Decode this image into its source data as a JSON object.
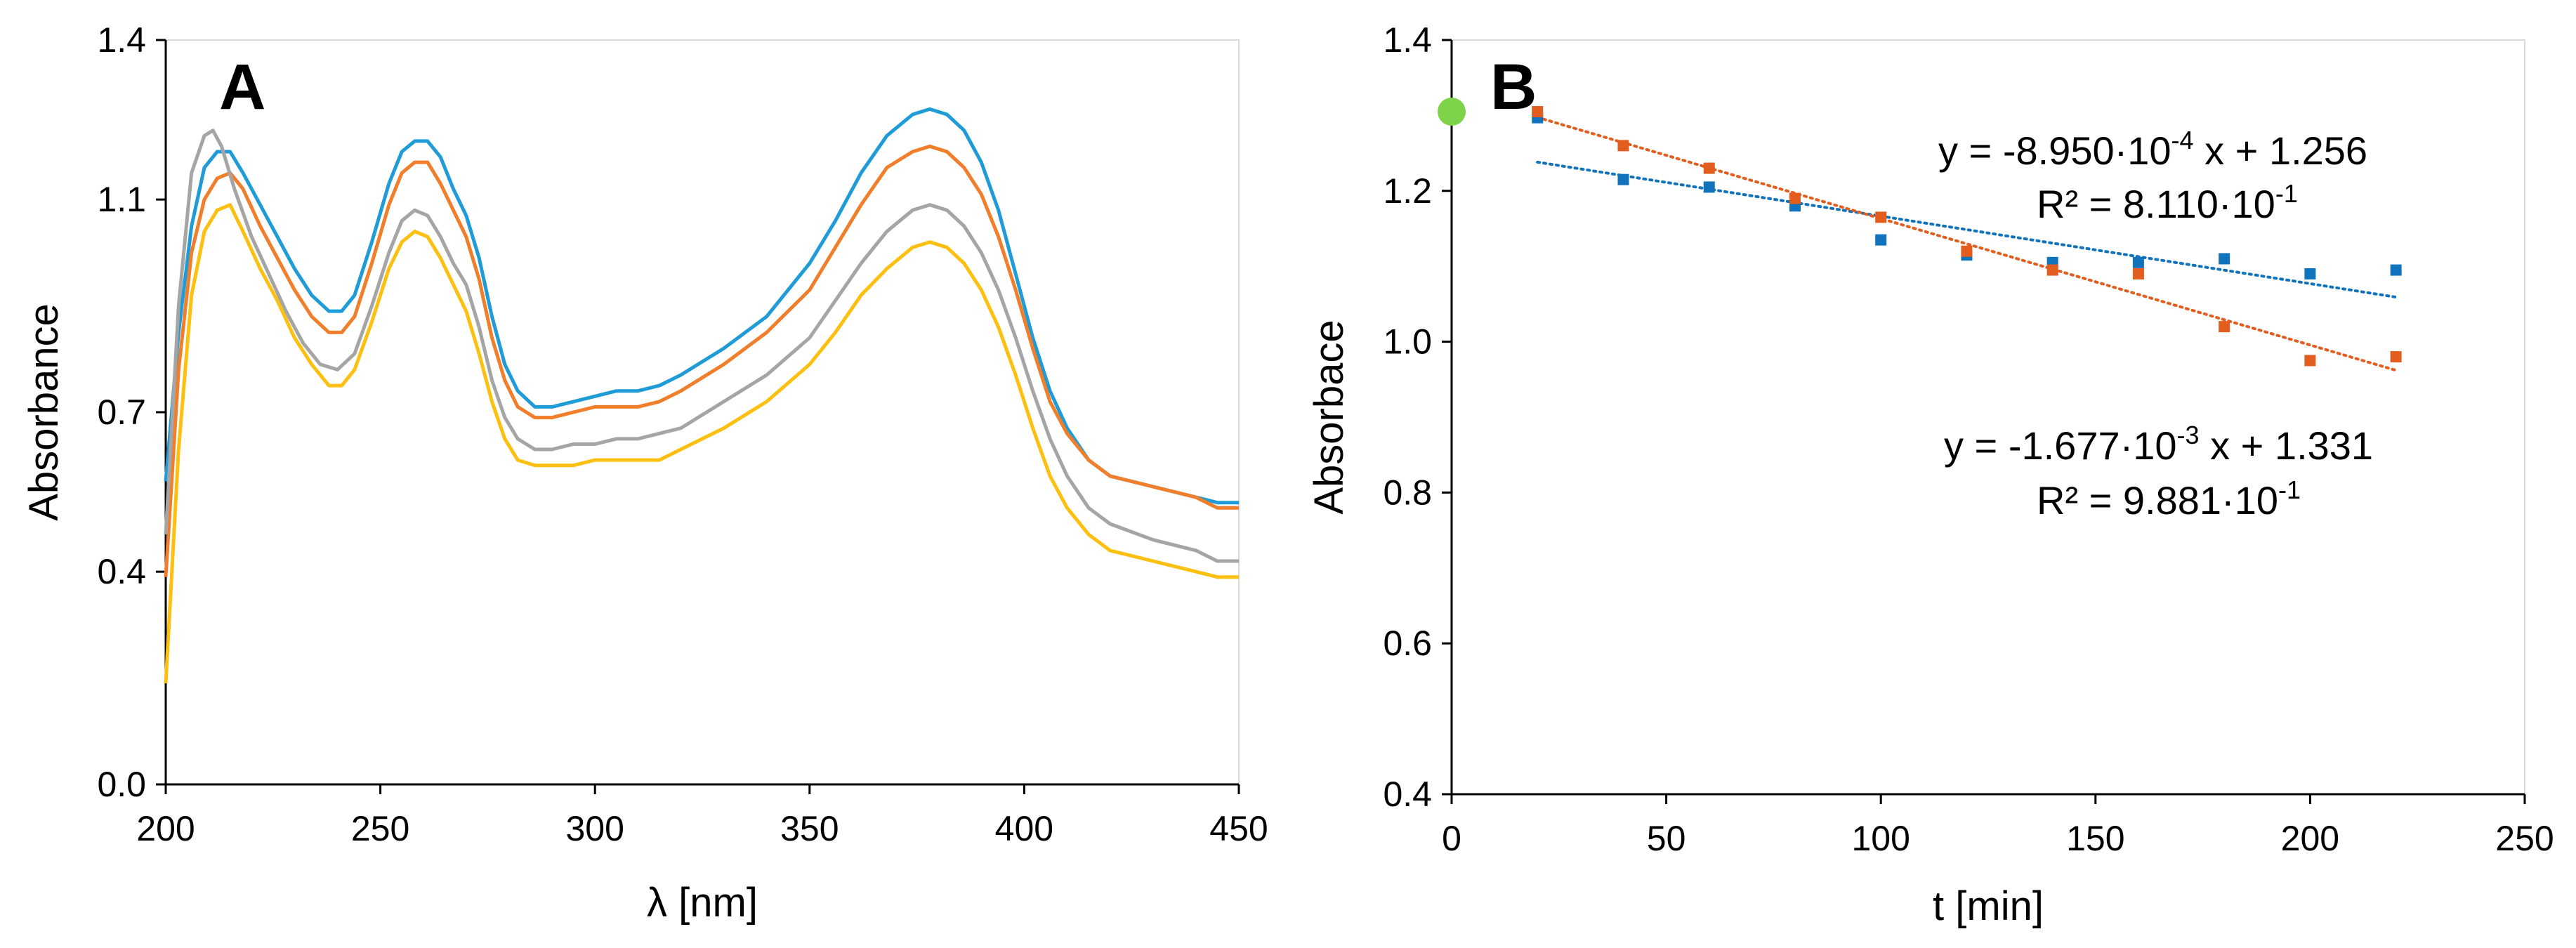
{
  "chart_data": [
    {
      "panel": "A",
      "type": "line",
      "xlabel": "λ [nm]",
      "ylabel": "Absorbance",
      "xlim": [
        200,
        450
      ],
      "ylim": [
        0.0,
        1.4
      ],
      "xticks": [
        "200",
        "250",
        "300",
        "350",
        "400",
        "450"
      ],
      "yticks": [
        "0.0",
        "0.4",
        "0.7",
        "1.1",
        "1.4"
      ],
      "grid": false,
      "series": [
        {
          "name": "series-1",
          "color": "#1f9bd7",
          "points": [
            [
              200,
              0.57
            ],
            [
              203,
              0.85
            ],
            [
              206,
              1.05
            ],
            [
              209,
              1.16
            ],
            [
              212,
              1.19
            ],
            [
              215,
              1.19
            ],
            [
              218,
              1.15
            ],
            [
              222,
              1.09
            ],
            [
              226,
              1.03
            ],
            [
              230,
              0.97
            ],
            [
              234,
              0.92
            ],
            [
              238,
              0.89
            ],
            [
              241,
              0.89
            ],
            [
              244,
              0.92
            ],
            [
              248,
              1.02
            ],
            [
              252,
              1.13
            ],
            [
              255,
              1.19
            ],
            [
              258,
              1.21
            ],
            [
              261,
              1.21
            ],
            [
              264,
              1.18
            ],
            [
              267,
              1.12
            ],
            [
              270,
              1.07
            ],
            [
              273,
              0.99
            ],
            [
              276,
              0.88
            ],
            [
              279,
              0.79
            ],
            [
              282,
              0.74
            ],
            [
              286,
              0.71
            ],
            [
              290,
              0.71
            ],
            [
              295,
              0.72
            ],
            [
              300,
              0.73
            ],
            [
              305,
              0.74
            ],
            [
              310,
              0.74
            ],
            [
              315,
              0.75
            ],
            [
              320,
              0.77
            ],
            [
              330,
              0.82
            ],
            [
              340,
              0.88
            ],
            [
              350,
              0.98
            ],
            [
              356,
              1.06
            ],
            [
              362,
              1.15
            ],
            [
              368,
              1.22
            ],
            [
              374,
              1.26
            ],
            [
              378,
              1.27
            ],
            [
              382,
              1.26
            ],
            [
              386,
              1.23
            ],
            [
              390,
              1.17
            ],
            [
              394,
              1.08
            ],
            [
              398,
              0.96
            ],
            [
              402,
              0.84
            ],
            [
              406,
              0.74
            ],
            [
              410,
              0.67
            ],
            [
              415,
              0.61
            ],
            [
              420,
              0.58
            ],
            [
              430,
              0.56
            ],
            [
              440,
              0.54
            ],
            [
              445,
              0.53
            ],
            [
              450,
              0.53
            ]
          ]
        },
        {
          "name": "series-2",
          "color": "#f07e2a",
          "points": [
            [
              200,
              0.39
            ],
            [
              203,
              0.78
            ],
            [
              206,
              1.0
            ],
            [
              209,
              1.1
            ],
            [
              212,
              1.14
            ],
            [
              215,
              1.15
            ],
            [
              218,
              1.12
            ],
            [
              222,
              1.05
            ],
            [
              226,
              0.99
            ],
            [
              230,
              0.93
            ],
            [
              234,
              0.88
            ],
            [
              238,
              0.85
            ],
            [
              241,
              0.85
            ],
            [
              244,
              0.88
            ],
            [
              248,
              0.98
            ],
            [
              252,
              1.09
            ],
            [
              255,
              1.15
            ],
            [
              258,
              1.17
            ],
            [
              261,
              1.17
            ],
            [
              264,
              1.13
            ],
            [
              267,
              1.08
            ],
            [
              270,
              1.03
            ],
            [
              273,
              0.95
            ],
            [
              276,
              0.84
            ],
            [
              279,
              0.76
            ],
            [
              282,
              0.71
            ],
            [
              286,
              0.69
            ],
            [
              290,
              0.69
            ],
            [
              295,
              0.7
            ],
            [
              300,
              0.71
            ],
            [
              305,
              0.71
            ],
            [
              310,
              0.71
            ],
            [
              315,
              0.72
            ],
            [
              320,
              0.74
            ],
            [
              330,
              0.79
            ],
            [
              340,
              0.85
            ],
            [
              350,
              0.93
            ],
            [
              356,
              1.01
            ],
            [
              362,
              1.09
            ],
            [
              368,
              1.16
            ],
            [
              374,
              1.19
            ],
            [
              378,
              1.2
            ],
            [
              382,
              1.19
            ],
            [
              386,
              1.16
            ],
            [
              390,
              1.11
            ],
            [
              394,
              1.03
            ],
            [
              398,
              0.93
            ],
            [
              402,
              0.82
            ],
            [
              406,
              0.72
            ],
            [
              410,
              0.66
            ],
            [
              415,
              0.61
            ],
            [
              420,
              0.58
            ],
            [
              430,
              0.56
            ],
            [
              440,
              0.54
            ],
            [
              445,
              0.52
            ],
            [
              450,
              0.52
            ]
          ]
        },
        {
          "name": "series-3",
          "color": "#a5a5a5",
          "points": [
            [
              200,
              0.47
            ],
            [
              203,
              0.9
            ],
            [
              206,
              1.15
            ],
            [
              209,
              1.22
            ],
            [
              211,
              1.23
            ],
            [
              213,
              1.2
            ],
            [
              216,
              1.12
            ],
            [
              220,
              1.03
            ],
            [
              224,
              0.96
            ],
            [
              228,
              0.89
            ],
            [
              232,
              0.83
            ],
            [
              236,
              0.79
            ],
            [
              240,
              0.78
            ],
            [
              244,
              0.81
            ],
            [
              248,
              0.9
            ],
            [
              252,
              1.0
            ],
            [
              255,
              1.06
            ],
            [
              258,
              1.08
            ],
            [
              261,
              1.07
            ],
            [
              264,
              1.03
            ],
            [
              267,
              0.98
            ],
            [
              270,
              0.94
            ],
            [
              273,
              0.86
            ],
            [
              276,
              0.76
            ],
            [
              279,
              0.69
            ],
            [
              282,
              0.65
            ],
            [
              286,
              0.63
            ],
            [
              290,
              0.63
            ],
            [
              295,
              0.64
            ],
            [
              300,
              0.64
            ],
            [
              305,
              0.65
            ],
            [
              310,
              0.65
            ],
            [
              315,
              0.66
            ],
            [
              320,
              0.67
            ],
            [
              330,
              0.72
            ],
            [
              340,
              0.77
            ],
            [
              350,
              0.84
            ],
            [
              356,
              0.91
            ],
            [
              362,
              0.98
            ],
            [
              368,
              1.04
            ],
            [
              374,
              1.08
            ],
            [
              378,
              1.09
            ],
            [
              382,
              1.08
            ],
            [
              386,
              1.05
            ],
            [
              390,
              1.0
            ],
            [
              394,
              0.93
            ],
            [
              398,
              0.84
            ],
            [
              402,
              0.74
            ],
            [
              406,
              0.65
            ],
            [
              410,
              0.58
            ],
            [
              415,
              0.52
            ],
            [
              420,
              0.49
            ],
            [
              430,
              0.46
            ],
            [
              440,
              0.44
            ],
            [
              445,
              0.42
            ],
            [
              450,
              0.42
            ]
          ]
        },
        {
          "name": "series-4",
          "color": "#fdc010",
          "points": [
            [
              200,
              0.19
            ],
            [
              203,
              0.63
            ],
            [
              206,
              0.92
            ],
            [
              209,
              1.04
            ],
            [
              212,
              1.08
            ],
            [
              215,
              1.09
            ],
            [
              218,
              1.04
            ],
            [
              222,
              0.97
            ],
            [
              226,
              0.91
            ],
            [
              230,
              0.84
            ],
            [
              234,
              0.79
            ],
            [
              238,
              0.75
            ],
            [
              241,
              0.75
            ],
            [
              244,
              0.78
            ],
            [
              248,
              0.87
            ],
            [
              252,
              0.97
            ],
            [
              255,
              1.02
            ],
            [
              258,
              1.04
            ],
            [
              261,
              1.03
            ],
            [
              264,
              0.99
            ],
            [
              267,
              0.94
            ],
            [
              270,
              0.89
            ],
            [
              273,
              0.81
            ],
            [
              276,
              0.72
            ],
            [
              279,
              0.65
            ],
            [
              282,
              0.61
            ],
            [
              286,
              0.6
            ],
            [
              290,
              0.6
            ],
            [
              295,
              0.6
            ],
            [
              300,
              0.61
            ],
            [
              305,
              0.61
            ],
            [
              310,
              0.61
            ],
            [
              315,
              0.61
            ],
            [
              320,
              0.63
            ],
            [
              330,
              0.67
            ],
            [
              340,
              0.72
            ],
            [
              350,
              0.79
            ],
            [
              356,
              0.85
            ],
            [
              362,
              0.92
            ],
            [
              368,
              0.97
            ],
            [
              374,
              1.01
            ],
            [
              378,
              1.02
            ],
            [
              382,
              1.01
            ],
            [
              386,
              0.98
            ],
            [
              390,
              0.93
            ],
            [
              394,
              0.86
            ],
            [
              398,
              0.77
            ],
            [
              402,
              0.67
            ],
            [
              406,
              0.58
            ],
            [
              410,
              0.52
            ],
            [
              415,
              0.47
            ],
            [
              420,
              0.44
            ],
            [
              430,
              0.42
            ],
            [
              440,
              0.4
            ],
            [
              445,
              0.39
            ],
            [
              450,
              0.39
            ]
          ]
        }
      ]
    },
    {
      "panel": "B",
      "type": "scatter",
      "xlabel": "t [min]",
      "ylabel": "Absorbace",
      "xlim": [
        0,
        250
      ],
      "ylim": [
        0.4,
        1.4
      ],
      "xticks": [
        "0",
        "50",
        "100",
        "150",
        "200",
        "250"
      ],
      "yticks": [
        "0.4",
        "0.6",
        "0.8",
        "1.0",
        "1.2",
        "1.4"
      ],
      "grid": false,
      "start_point": {
        "x": 0,
        "y": 1.305,
        "color": "#7ed348"
      },
      "series": [
        {
          "name": "blue",
          "color": "#1273bd",
          "x": [
            20,
            40,
            60,
            80,
            100,
            120,
            140,
            160,
            180,
            200,
            220
          ],
          "y": [
            1.297,
            1.215,
            1.205,
            1.18,
            1.135,
            1.115,
            1.105,
            1.105,
            1.11,
            1.09,
            1.095
          ],
          "trendline": {
            "slope": -0.000895,
            "intercept": 1.256,
            "x_range": [
              20,
              220
            ]
          },
          "equation": {
            "prefix": "y = -8.950·10",
            "exp": "-4",
            "suffix": " x + 1.256",
            "r2_prefix": "R² = 8.110·10",
            "r2_exp": "-1"
          }
        },
        {
          "name": "orange",
          "color": "#e35d1e",
          "x": [
            20,
            40,
            60,
            80,
            100,
            120,
            140,
            160,
            180,
            200,
            220
          ],
          "y": [
            1.305,
            1.26,
            1.23,
            1.19,
            1.165,
            1.12,
            1.095,
            1.09,
            1.02,
            0.975,
            0.98
          ],
          "trendline": {
            "slope": -0.001677,
            "intercept": 1.331,
            "x_range": [
              20,
              220
            ]
          },
          "equation": {
            "prefix": "y = -1.677·10",
            "exp": "-3",
            "suffix": " x + 1.331",
            "r2_prefix": "R² = 9.881·10",
            "r2_exp": "-1"
          }
        }
      ]
    }
  ]
}
